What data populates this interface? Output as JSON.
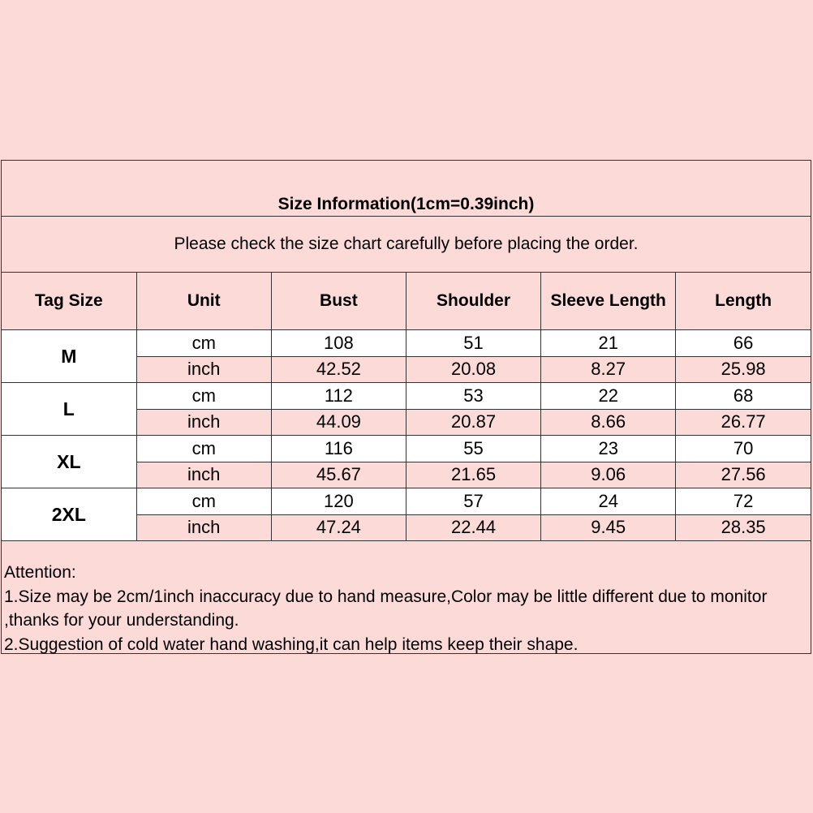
{
  "title": "Size Information(1cm=0.39inch)",
  "subtitle": "Please check the size chart carefully before placing the order.",
  "headers": [
    "Tag Size",
    "Unit",
    "Bust",
    "Shoulder",
    "Sleeve Length",
    "Length"
  ],
  "rows": [
    {
      "size": "M",
      "cm": [
        "cm",
        "108",
        "51",
        "21",
        "66"
      ],
      "inch": [
        "inch",
        "42.52",
        "20.08",
        "8.27",
        "25.98"
      ]
    },
    {
      "size": "L",
      "cm": [
        "cm",
        "112",
        "53",
        "22",
        "68"
      ],
      "inch": [
        "inch",
        "44.09",
        "20.87",
        "8.66",
        "26.77"
      ]
    },
    {
      "size": "XL",
      "cm": [
        "cm",
        "116",
        "55",
        "23",
        "70"
      ],
      "inch": [
        "inch",
        "45.67",
        "21.65",
        "9.06",
        "27.56"
      ]
    },
    {
      "size": "2XL",
      "cm": [
        "cm",
        "120",
        "57",
        "24",
        "72"
      ],
      "inch": [
        "inch",
        "47.24",
        "22.44",
        "9.45",
        "28.35"
      ]
    }
  ],
  "notes": [
    "Attention:",
    "1.Size may be 2cm/1inch inaccuracy due to hand measure,Color may be little different due to monitor ,thanks for your understanding.",
    "2.Suggestion of cold water hand washing,it can help items keep their shape."
  ],
  "colors": {
    "background": "#fcdad8",
    "border": "#333333"
  }
}
